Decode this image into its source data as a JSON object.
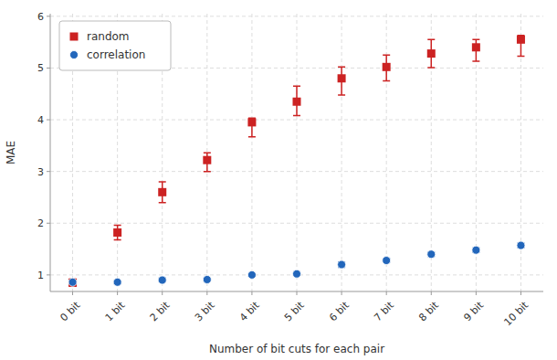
{
  "chart_data": {
    "type": "errorbar",
    "xlabel": "Number of bit cuts for each pair",
    "ylabel": "MAE",
    "categories": [
      "0 bit",
      "1 bit",
      "2 bit",
      "3 bit",
      "4 bit",
      "5 bit",
      "6 bit",
      "7 bit",
      "8 bit",
      "9 bit",
      "10 bit"
    ],
    "series": [
      {
        "name": "random",
        "color": "#cc2222",
        "marker": "square",
        "values": [
          0.85,
          1.82,
          2.6,
          3.22,
          3.95,
          4.35,
          4.8,
          5.02,
          5.28,
          5.4,
          5.55
        ],
        "error_low": [
          0.07,
          0.14,
          0.2,
          0.22,
          0.28,
          0.27,
          0.32,
          0.27,
          0.27,
          0.27,
          0.32
        ],
        "error_high": [
          0.07,
          0.14,
          0.2,
          0.14,
          0.08,
          0.3,
          0.22,
          0.23,
          0.27,
          0.15,
          0.08
        ]
      },
      {
        "name": "correlation",
        "color": "#2266bb",
        "marker": "circle",
        "values": [
          0.86,
          0.86,
          0.9,
          0.91,
          1.0,
          1.02,
          1.2,
          1.28,
          1.4,
          1.48,
          1.57
        ],
        "error_low": [
          0.03,
          0.03,
          0.03,
          0.03,
          0.03,
          0.03,
          0.05,
          0.04,
          0.04,
          0.04,
          0.04
        ],
        "error_high": [
          0.03,
          0.03,
          0.03,
          0.03,
          0.03,
          0.03,
          0.05,
          0.04,
          0.04,
          0.04,
          0.04
        ]
      }
    ],
    "ylim": [
      0.68,
      6.05
    ],
    "yticks": [
      1,
      2,
      3,
      4,
      5,
      6
    ],
    "grid": true,
    "legend": "upper left"
  }
}
